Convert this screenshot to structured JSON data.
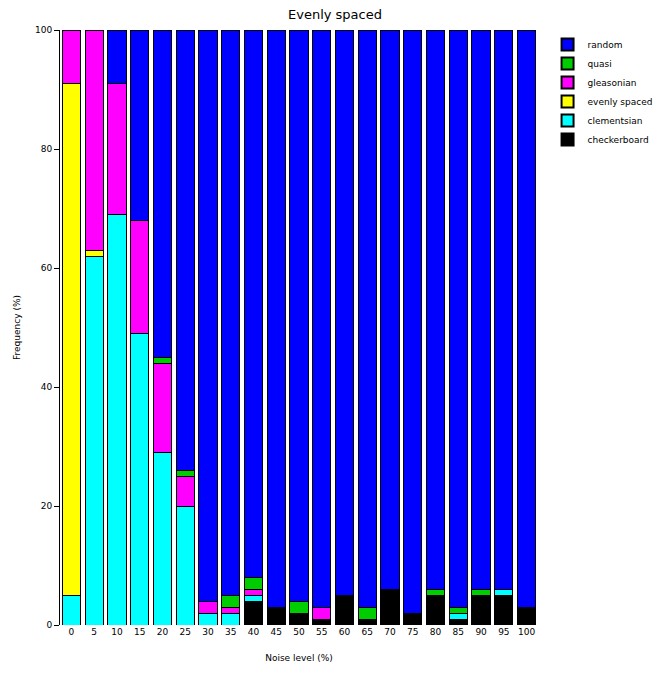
{
  "chart_data": {
    "type": "bar",
    "title": "Evenly spaced",
    "x_label": "Noise level (%)",
    "y_label": "Frequency (%)",
    "categories": [
      "0",
      "5",
      "10",
      "15",
      "20",
      "25",
      "30",
      "35",
      "40",
      "45",
      "50",
      "55",
      "60",
      "65",
      "70",
      "75",
      "80",
      "85",
      "90",
      "95",
      "100"
    ],
    "series": [
      {
        "name": "checkerboard",
        "color": "#000000",
        "values": [
          0,
          0,
          0,
          0,
          0,
          0,
          0,
          0,
          4,
          3,
          2,
          1,
          5,
          1,
          6,
          2,
          5,
          1,
          5,
          5,
          3
        ]
      },
      {
        "name": "clementsian",
        "color": "#00ffff",
        "values": [
          5,
          62,
          69,
          49,
          29,
          20,
          2,
          2,
          1,
          0,
          0,
          0,
          0,
          0,
          0,
          0,
          0,
          1,
          0,
          1,
          0
        ]
      },
      {
        "name": "evenly spaced",
        "color": "#ffff00",
        "values": [
          86,
          1,
          0,
          0,
          0,
          0,
          0,
          0,
          0,
          0,
          0,
          0,
          0,
          0,
          0,
          0,
          0,
          0,
          0,
          0,
          0
        ]
      },
      {
        "name": "gleasonian",
        "color": "#ff00ff",
        "values": [
          9,
          37,
          22,
          19,
          15,
          5,
          2,
          1,
          1,
          0,
          0,
          2,
          0,
          0,
          0,
          0,
          0,
          0,
          0,
          0,
          0
        ]
      },
      {
        "name": "quasi",
        "color": "#00cd00",
        "values": [
          0,
          0,
          0,
          0,
          1,
          1,
          0,
          2,
          2,
          0,
          2,
          0,
          0,
          2,
          0,
          0,
          1,
          1,
          1,
          0,
          0
        ]
      },
      {
        "name": "random",
        "color": "#0000ff",
        "values": [
          0,
          0,
          9,
          32,
          55,
          74,
          96,
          95,
          92,
          97,
          96,
          97,
          95,
          97,
          94,
          98,
          94,
          97,
          94,
          94,
          97
        ]
      }
    ],
    "ylim": [
      0,
      100
    ],
    "yticks": [
      0,
      20,
      40,
      60,
      80,
      100
    ],
    "stacked": true,
    "grid": false,
    "legend": "right"
  }
}
